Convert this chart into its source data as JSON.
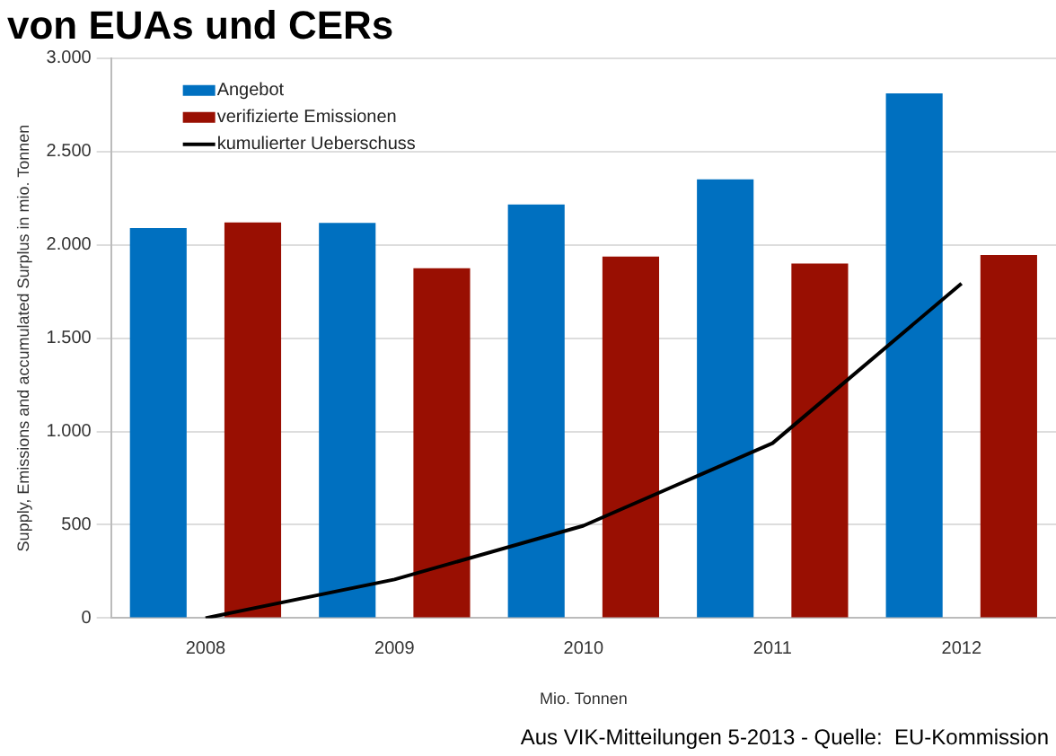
{
  "chart_data": {
    "type": "bar",
    "title": "von EUAs und CERs",
    "xlabel": "Mio. Tonnen",
    "ylabel": "Supply, Emissions and accumulated Surplus in mio. Tonnen",
    "categories": [
      "2008",
      "2009",
      "2010",
      "2011",
      "2012"
    ],
    "series": [
      {
        "name": "Angebot",
        "color": "#0070c0",
        "values": [
          2090,
          2117,
          2216,
          2351,
          2811
        ]
      },
      {
        "name": "verifizierte Emissionen",
        "color": "#990f02",
        "values": [
          2120,
          1874,
          1937,
          1900,
          1946
        ]
      },
      {
        "name": "kumulierter Ueberschuss",
        "type": "line",
        "color": "#000000",
        "values": [
          0,
          207,
          495,
          937,
          1793
        ]
      }
    ],
    "ylim": [
      0,
      3000
    ],
    "yticks": [
      {
        "value": 0,
        "label": "0"
      },
      {
        "value": 500,
        "label": "500"
      },
      {
        "value": 1000,
        "label": "1.000"
      },
      {
        "value": 1500,
        "label": "1.500"
      },
      {
        "value": 2000,
        "label": "2.000"
      },
      {
        "value": 2500,
        "label": "2.500"
      },
      {
        "value": 3000,
        "label": "3.000"
      }
    ],
    "grid": "y",
    "legend": "top left",
    "marker": "none",
    "annotations": [
      "Aus VIK-Mitteilungen 5-2013 - Quelle:  EU-Kommission"
    ]
  }
}
